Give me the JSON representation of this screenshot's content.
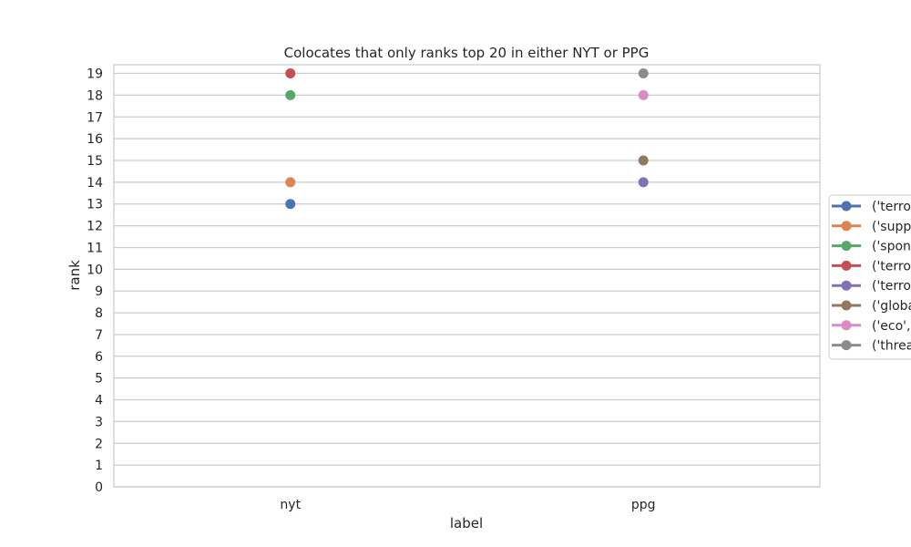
{
  "chart_data": {
    "type": "scatter",
    "title": "Colocates that only ranks top 20 in either NYT or PPG",
    "xlabel": "label",
    "ylabel": "rank",
    "categories": [
      "nyt",
      "ppg"
    ],
    "yticks": [
      0,
      1,
      2,
      3,
      4,
      5,
      6,
      7,
      8,
      9,
      10,
      11,
      12,
      13,
      14,
      15,
      16,
      17,
      18,
      19
    ],
    "ylim": [
      0,
      19.4
    ],
    "grid": true,
    "legend_position": "right",
    "series": [
      {
        "name": "('terror",
        "color": "#4c72b0",
        "points": [
          {
            "x": "nyt",
            "y": 13
          }
        ]
      },
      {
        "name": "('suppo",
        "color": "#dd8452",
        "points": [
          {
            "x": "nyt",
            "y": 14
          }
        ]
      },
      {
        "name": "('spons",
        "color": "#55a868",
        "points": [
          {
            "x": "nyt",
            "y": 18
          }
        ]
      },
      {
        "name": "('terror",
        "color": "#c44e52",
        "points": [
          {
            "x": "nyt",
            "y": 19
          }
        ]
      },
      {
        "name": "('terror",
        "color": "#8172b3",
        "points": [
          {
            "x": "ppg",
            "y": 14
          }
        ]
      },
      {
        "name": "('globa",
        "color": "#937860",
        "points": [
          {
            "x": "ppg",
            "y": 15
          }
        ]
      },
      {
        "name": "('eco',",
        "color": "#da8bc3",
        "points": [
          {
            "x": "ppg",
            "y": 18
          }
        ]
      },
      {
        "name": "('threa",
        "color": "#8c8c8c",
        "points": [
          {
            "x": "ppg",
            "y": 19
          }
        ]
      }
    ]
  }
}
